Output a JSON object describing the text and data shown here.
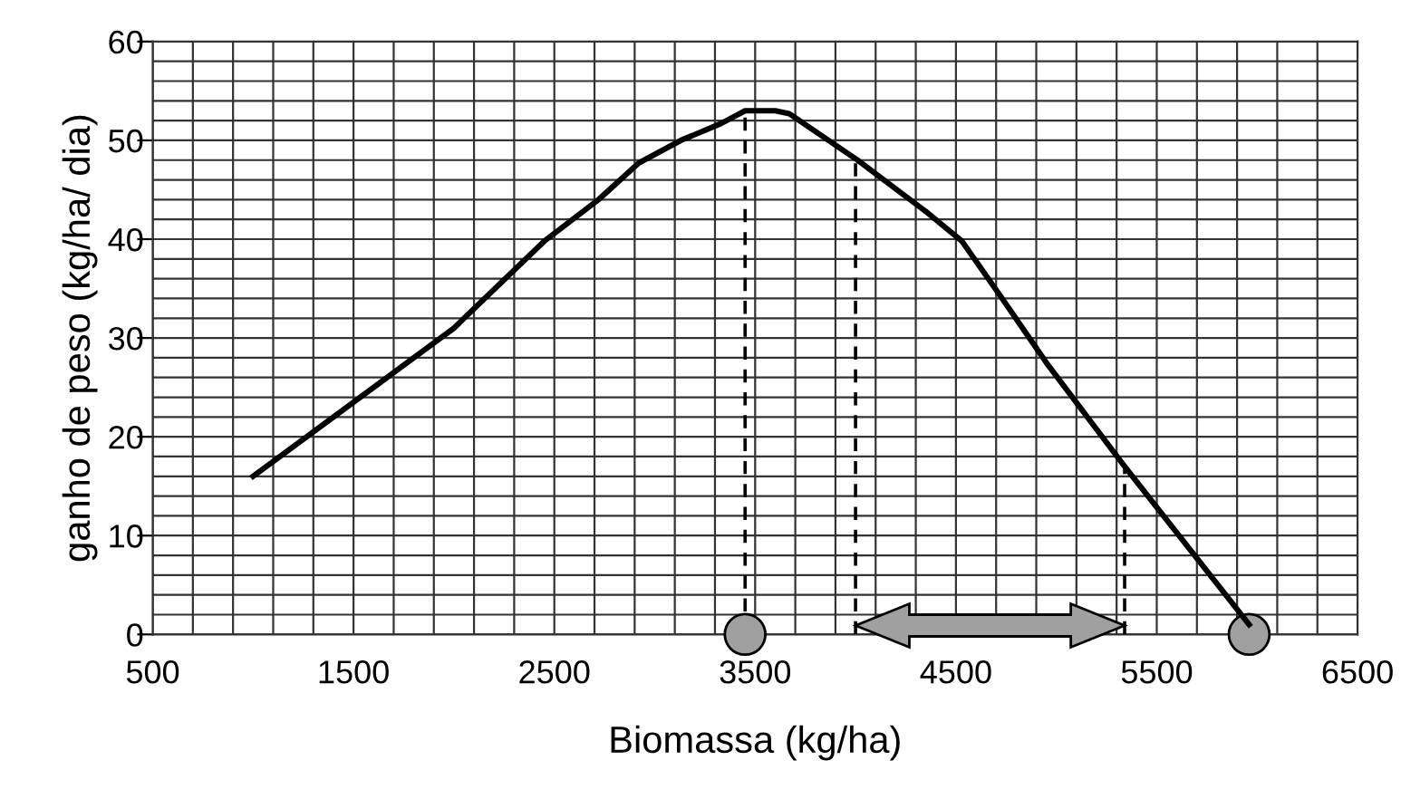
{
  "chart_data": {
    "type": "line",
    "xlabel": "Biomassa (kg/ha)",
    "ylabel": "ganho de peso (kg/ha/ dia)",
    "xlim": [
      500,
      6500
    ],
    "ylim": [
      0,
      60
    ],
    "xticks": [
      500,
      {
        "value": 700,
        "label": null
      },
      {
        "value": 900,
        "label": null
      },
      {
        "value": 1100,
        "label": null
      },
      {
        "value": 1300,
        "label": null
      },
      1500,
      {
        "value": 1700,
        "label": null
      },
      {
        "value": 1900,
        "label": null
      },
      {
        "value": 2100,
        "label": null
      },
      {
        "value": 2300,
        "label": null
      },
      2500,
      {
        "value": 2700,
        "label": null
      },
      {
        "value": 2900,
        "label": null
      },
      {
        "value": 3100,
        "label": null
      },
      {
        "value": 3300,
        "label": null
      },
      3500,
      {
        "value": 3700,
        "label": null
      },
      {
        "value": 3900,
        "label": null
      },
      {
        "value": 4100,
        "label": null
      },
      {
        "value": 4300,
        "label": null
      },
      4500,
      {
        "value": 4700,
        "label": null
      },
      {
        "value": 4900,
        "label": null
      },
      {
        "value": 5100,
        "label": null
      },
      {
        "value": 5300,
        "label": null
      },
      5500,
      {
        "value": 5700,
        "label": null
      },
      {
        "value": 5900,
        "label": null
      },
      {
        "value": 6100,
        "label": null
      },
      {
        "value": 6300,
        "label": null
      },
      6500
    ],
    "yticks": [
      0,
      {
        "value": 2,
        "label": null
      },
      {
        "value": 4,
        "label": null
      },
      {
        "value": 6,
        "label": null
      },
      {
        "value": 8,
        "label": null
      },
      10,
      {
        "value": 12,
        "label": null
      },
      {
        "value": 14,
        "label": null
      },
      {
        "value": 16,
        "label": null
      },
      {
        "value": 18,
        "label": null
      },
      20,
      {
        "value": 22,
        "label": null
      },
      {
        "value": 24,
        "label": null
      },
      {
        "value": 26,
        "label": null
      },
      {
        "value": 28,
        "label": null
      },
      30,
      {
        "value": 32,
        "label": null
      },
      {
        "value": 34,
        "label": null
      },
      {
        "value": 36,
        "label": null
      },
      {
        "value": 38,
        "label": null
      },
      40,
      {
        "value": 42,
        "label": null
      },
      {
        "value": 44,
        "label": null
      },
      {
        "value": 46,
        "label": null
      },
      {
        "value": 48,
        "label": null
      },
      50,
      {
        "value": 52,
        "label": null
      },
      {
        "value": 54,
        "label": null
      },
      {
        "value": 56,
        "label": null
      },
      {
        "value": 58,
        "label": null
      },
      60
    ],
    "grid": true,
    "series": [
      {
        "color": "#000000",
        "x": [
          1000,
          1500,
          2000,
          2450,
          2720,
          2920,
          3130,
          3330,
          3450,
          3600,
          3670,
          4010,
          4350,
          4530,
          4720,
          4950,
          5340,
          5960
        ],
        "values": [
          16,
          23.5,
          31,
          39.8,
          44,
          47.7,
          50,
          51.7,
          53,
          53,
          52.7,
          48,
          42.8,
          39.8,
          34.3,
          27.5,
          17,
          1
        ]
      },
      {
        "type": "scatter",
        "color": "#a0a0a0",
        "marker": "circle",
        "x": [
          3450,
          5960
        ],
        "values": [
          0,
          0
        ]
      }
    ],
    "ref_lines": [
      {
        "axis": "x",
        "value": 3450,
        "line_style": "dashed"
      },
      {
        "axis": "x",
        "value": 4000,
        "line_style": "dashed"
      },
      {
        "axis": "x",
        "value": 5340,
        "line_style": "dashed"
      }
    ]
  }
}
